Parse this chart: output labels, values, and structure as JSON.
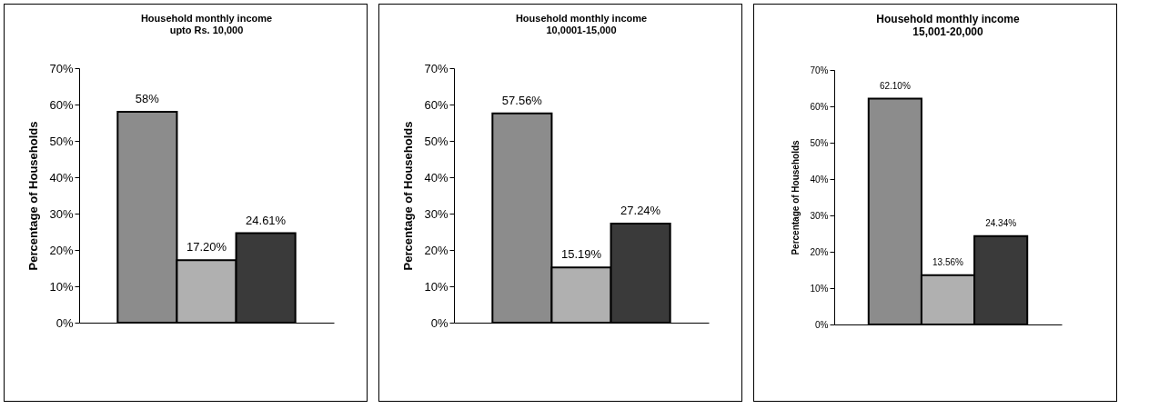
{
  "chart_data": [
    {
      "type": "bar",
      "title": "Household monthly income\nupto Rs. 10,000",
      "ylabel": "Percentage of Households",
      "categories": [
        null,
        null,
        null
      ],
      "values": [
        58,
        17.2,
        24.61
      ],
      "value_labels": [
        "58%",
        "17.20%",
        "24.61%"
      ],
      "colors": [
        "#8c8c8c",
        "#b0b0b0",
        "#3a3a3a"
      ],
      "ylim": [
        0,
        70
      ],
      "yticks": [
        {
          "value": 0,
          "label": "0%"
        },
        {
          "value": 10,
          "label": "10%"
        },
        {
          "value": 20,
          "label": "20%"
        },
        {
          "value": 30,
          "label": "30%"
        },
        {
          "value": 40,
          "label": "40%"
        },
        {
          "value": 50,
          "label": "50%"
        },
        {
          "value": 60,
          "label": "60%"
        },
        {
          "value": 70,
          "label": "70%"
        }
      ]
    },
    {
      "type": "bar",
      "title": "Household monthly income\n10,0001-15,000",
      "ylabel": "Percentage of Households",
      "categories": [
        null,
        null,
        null
      ],
      "values": [
        57.56,
        15.19,
        27.24
      ],
      "value_labels": [
        "57.56%",
        "15.19%",
        "27.24%"
      ],
      "colors": [
        "#8c8c8c",
        "#b0b0b0",
        "#3a3a3a"
      ],
      "ylim": [
        0,
        70
      ],
      "yticks": [
        {
          "value": 0,
          "label": "0%"
        },
        {
          "value": 10,
          "label": "10%"
        },
        {
          "value": 20,
          "label": "20%"
        },
        {
          "value": 30,
          "label": "30%"
        },
        {
          "value": 40,
          "label": "40%"
        },
        {
          "value": 50,
          "label": "50%"
        },
        {
          "value": 60,
          "label": "60%"
        },
        {
          "value": 70,
          "label": "70%"
        }
      ]
    },
    {
      "type": "bar",
      "title": "Household monthly income\n15,001-20,000",
      "ylabel": "Percentage of Households",
      "categories": [
        null,
        null,
        null
      ],
      "values": [
        62.1,
        13.56,
        24.34
      ],
      "value_labels": [
        "62.10%",
        "13.56%",
        "24.34%"
      ],
      "colors": [
        "#8c8c8c",
        "#b0b0b0",
        "#3a3a3a"
      ],
      "ylim": [
        0,
        70
      ],
      "yticks": [
        {
          "value": 0,
          "label": "0%"
        },
        {
          "value": 10,
          "label": "10%"
        },
        {
          "value": 20,
          "label": "20%"
        },
        {
          "value": 30,
          "label": "30%"
        },
        {
          "value": 40,
          "label": "40%"
        },
        {
          "value": 50,
          "label": "50%"
        },
        {
          "value": 60,
          "label": "60%"
        },
        {
          "value": 70,
          "label": "70%"
        }
      ]
    }
  ]
}
